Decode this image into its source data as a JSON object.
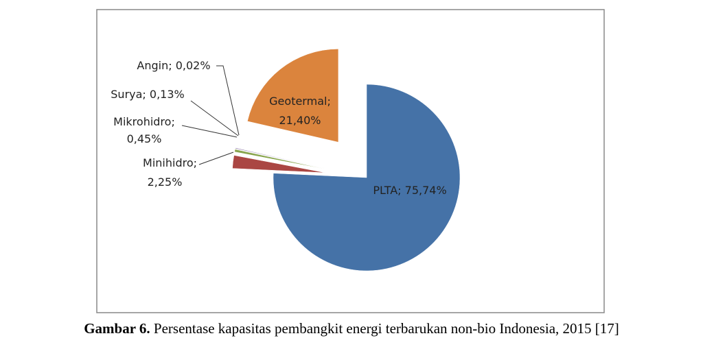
{
  "chart_data": {
    "type": "pie",
    "categories": [
      "PLTA",
      "Minihidro",
      "Mikrohidro",
      "Surya",
      "Angin",
      "Geotermal"
    ],
    "values": [
      75.74,
      2.25,
      0.45,
      0.13,
      0.02,
      21.4
    ],
    "value_labels": [
      "75,74%",
      "2,25%",
      "0,45%",
      "0,13%",
      "0,02%",
      "21,40%"
    ],
    "label_separator": ";",
    "colors": [
      "#4572a7",
      "#aa4643",
      "#89a54e",
      "#80699b",
      "#3d96ae",
      "#db843d"
    ]
  },
  "caption": {
    "label": "Gambar 6.",
    "text": "Persentase kapasitas pembangkit energi terbarukan non-bio Indonesia, 2015 [17]"
  }
}
